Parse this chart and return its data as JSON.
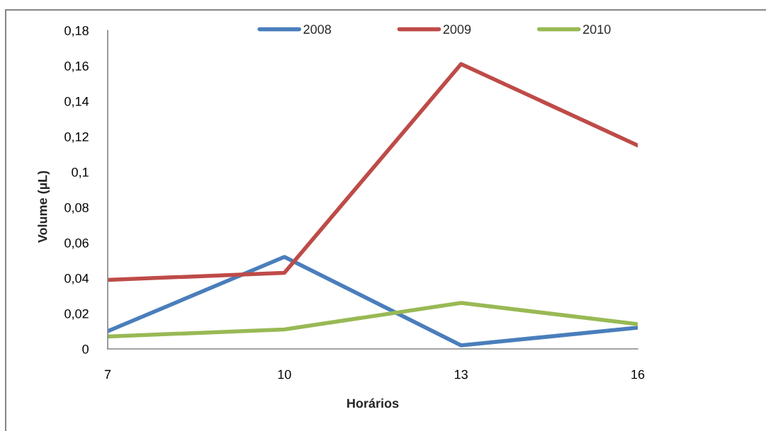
{
  "chart_data": {
    "type": "line",
    "xlabel": "Horários",
    "ylabel": "Volume (µL)",
    "categories": [
      "7",
      "10",
      "13",
      "16"
    ],
    "series": [
      {
        "name": "2008",
        "color": "#4a7ebb",
        "values": [
          0.01,
          0.052,
          0.002,
          0.012
        ]
      },
      {
        "name": "2009",
        "color": "#be4b48",
        "values": [
          0.039,
          0.043,
          0.161,
          0.115
        ]
      },
      {
        "name": "2010",
        "color": "#98b954",
        "values": [
          0.007,
          0.011,
          0.026,
          0.014
        ]
      }
    ],
    "ylim": [
      0,
      0.18
    ],
    "yticks": [
      0,
      {
        "value": 0.02,
        "label": "0,02"
      },
      {
        "value": 0.04,
        "label": "0,04"
      },
      {
        "value": 0.06,
        "label": "0,06"
      },
      {
        "value": 0.08,
        "label": "0,08"
      },
      {
        "value": 0.1,
        "label": "0,1"
      },
      {
        "value": 0.12,
        "label": "0,12"
      },
      {
        "value": 0.14,
        "label": "0,14"
      },
      {
        "value": 0.16,
        "label": "0,16"
      },
      {
        "value": 0.18,
        "label": "0,18"
      }
    ],
    "legend": "top",
    "line_style": "solid"
  }
}
